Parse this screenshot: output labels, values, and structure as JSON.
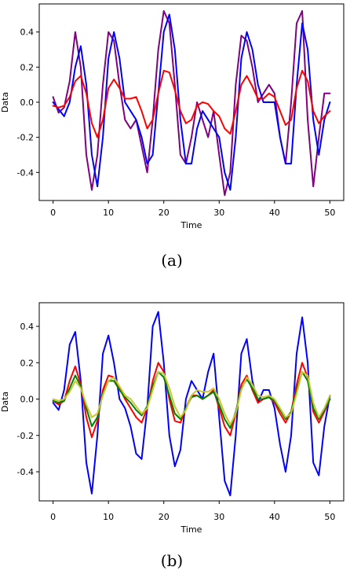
{
  "chart_data": [
    {
      "type": "line",
      "caption": "(a)",
      "xlabel": "Time",
      "ylabel": "Data",
      "xlim": [
        -2.5,
        52.5
      ],
      "ylim": [
        -0.56,
        0.56
      ],
      "xticks": [
        "0",
        "10",
        "20",
        "30",
        "40",
        "50"
      ],
      "yticks": [
        "-0.4",
        "-0.2",
        "0.0",
        "0.2",
        "0.4"
      ],
      "grid": false,
      "x": [
        0,
        1,
        2,
        3,
        4,
        5,
        6,
        7,
        8,
        9,
        10,
        11,
        12,
        13,
        14,
        15,
        16,
        17,
        18,
        19,
        20,
        21,
        22,
        23,
        24,
        25,
        26,
        27,
        28,
        29,
        30,
        31,
        32,
        33,
        34,
        35,
        36,
        37,
        38,
        39,
        40,
        41,
        42,
        43,
        44,
        45,
        46,
        47,
        48,
        49,
        50
      ],
      "series": [
        {
          "color": "#800080",
          "values": [
            0.03,
            -0.06,
            -0.03,
            0.12,
            0.4,
            0.2,
            -0.3,
            -0.5,
            -0.3,
            0.1,
            0.4,
            0.35,
            0.1,
            -0.1,
            -0.15,
            -0.1,
            -0.25,
            -0.4,
            -0.1,
            0.3,
            0.52,
            0.45,
            0.1,
            -0.3,
            -0.35,
            -0.2,
            0.0,
            -0.1,
            -0.2,
            -0.05,
            -0.3,
            -0.53,
            -0.4,
            0.1,
            0.38,
            0.35,
            0.2,
            0.0,
            0.05,
            0.1,
            0.05,
            -0.2,
            -0.35,
            0.0,
            0.45,
            0.52,
            -0.1,
            -0.48,
            -0.2,
            0.05,
            0.05
          ]
        },
        {
          "color": "#0000ff",
          "values": [
            0.0,
            -0.04,
            -0.08,
            0.0,
            0.2,
            0.32,
            0.1,
            -0.3,
            -0.48,
            -0.2,
            0.25,
            0.4,
            0.25,
            0.0,
            -0.05,
            -0.1,
            -0.2,
            -0.35,
            -0.3,
            0.05,
            0.4,
            0.5,
            0.3,
            -0.1,
            -0.35,
            -0.35,
            -0.15,
            -0.05,
            -0.1,
            -0.15,
            -0.2,
            -0.4,
            -0.5,
            -0.2,
            0.25,
            0.4,
            0.3,
            0.1,
            0.0,
            0.0,
            0.0,
            -0.2,
            -0.35,
            -0.35,
            0.1,
            0.45,
            0.3,
            -0.1,
            -0.3,
            -0.1,
            0.0
          ]
        },
        {
          "color": "#ff0000",
          "values": [
            -0.02,
            -0.03,
            -0.02,
            0.03,
            0.12,
            0.15,
            0.05,
            -0.12,
            -0.2,
            -0.1,
            0.08,
            0.13,
            0.08,
            0.02,
            0.02,
            0.03,
            -0.05,
            -0.15,
            -0.1,
            0.05,
            0.18,
            0.17,
            0.07,
            -0.05,
            -0.12,
            -0.1,
            -0.02,
            0.0,
            -0.01,
            -0.05,
            -0.08,
            -0.15,
            -0.18,
            -0.05,
            0.1,
            0.15,
            0.09,
            0.02,
            0.02,
            0.05,
            0.03,
            -0.05,
            -0.13,
            -0.1,
            0.08,
            0.18,
            0.12,
            -0.05,
            -0.12,
            -0.08,
            -0.05
          ]
        }
      ]
    },
    {
      "type": "line",
      "caption": "(b)",
      "xlabel": "Time",
      "ylabel": "Data",
      "xlim": [
        -2.5,
        52.5
      ],
      "ylim": [
        -0.56,
        0.53
      ],
      "xticks": [
        "0",
        "10",
        "20",
        "30",
        "40",
        "50"
      ],
      "yticks": [
        "-0.4",
        "-0.2",
        "0.0",
        "0.2",
        "0.4"
      ],
      "grid": false,
      "x": [
        0,
        1,
        2,
        3,
        4,
        5,
        6,
        7,
        8,
        9,
        10,
        11,
        12,
        13,
        14,
        15,
        16,
        17,
        18,
        19,
        20,
        21,
        22,
        23,
        24,
        25,
        26,
        27,
        28,
        29,
        30,
        31,
        32,
        33,
        34,
        35,
        36,
        37,
        38,
        39,
        40,
        41,
        42,
        43,
        44,
        45,
        46,
        47,
        48,
        49,
        50
      ],
      "series": [
        {
          "color": "#0000ff",
          "values": [
            -0.02,
            -0.06,
            0.05,
            0.3,
            0.37,
            0.1,
            -0.35,
            -0.52,
            -0.2,
            0.25,
            0.35,
            0.2,
            0.0,
            -0.05,
            -0.15,
            -0.3,
            -0.33,
            -0.05,
            0.4,
            0.48,
            0.2,
            -0.2,
            -0.37,
            -0.28,
            0.0,
            0.1,
            0.05,
            0.0,
            0.15,
            0.25,
            -0.1,
            -0.45,
            -0.53,
            -0.2,
            0.25,
            0.33,
            0.1,
            -0.02,
            0.05,
            0.05,
            -0.05,
            -0.25,
            -0.4,
            -0.2,
            0.25,
            0.45,
            0.2,
            -0.35,
            -0.42,
            -0.15,
            0.02
          ]
        },
        {
          "color": "#ff0000",
          "values": [
            -0.01,
            -0.03,
            -0.01,
            0.1,
            0.18,
            0.08,
            -0.1,
            -0.21,
            -0.12,
            0.05,
            0.13,
            0.12,
            0.06,
            0.0,
            -0.05,
            -0.1,
            -0.13,
            -0.05,
            0.1,
            0.2,
            0.15,
            0.0,
            -0.12,
            -0.13,
            -0.05,
            0.02,
            0.02,
            0.0,
            0.02,
            0.05,
            -0.05,
            -0.15,
            -0.2,
            -0.08,
            0.08,
            0.13,
            0.05,
            -0.02,
            0.0,
            0.01,
            -0.02,
            -0.08,
            -0.13,
            -0.07,
            0.08,
            0.2,
            0.12,
            -0.07,
            -0.13,
            -0.07,
            0.0
          ]
        },
        {
          "color": "#008000",
          "values": [
            -0.01,
            -0.02,
            -0.01,
            0.06,
            0.13,
            0.07,
            -0.05,
            -0.15,
            -0.1,
            0.03,
            0.1,
            0.1,
            0.05,
            0.01,
            -0.02,
            -0.06,
            -0.09,
            -0.04,
            0.07,
            0.15,
            0.12,
            0.02,
            -0.08,
            -0.11,
            -0.05,
            0.01,
            0.02,
            0.0,
            0.02,
            0.04,
            -0.03,
            -0.11,
            -0.16,
            -0.07,
            0.06,
            0.11,
            0.06,
            0.0,
            0.0,
            0.01,
            -0.01,
            -0.06,
            -0.11,
            -0.07,
            0.05,
            0.15,
            0.1,
            -0.05,
            -0.11,
            -0.06,
            0.0
          ]
        },
        {
          "color": "#c8c832",
          "values": [
            0.0,
            -0.01,
            0.0,
            0.04,
            0.1,
            0.06,
            -0.03,
            -0.1,
            -0.08,
            0.02,
            0.1,
            0.12,
            0.07,
            0.02,
            0.0,
            -0.04,
            -0.08,
            -0.05,
            0.05,
            0.15,
            0.14,
            0.06,
            -0.04,
            -0.1,
            -0.06,
            0.02,
            0.05,
            0.04,
            0.04,
            0.06,
            0.0,
            -0.08,
            -0.14,
            -0.08,
            0.05,
            0.12,
            0.08,
            0.02,
            0.01,
            0.02,
            0.0,
            -0.05,
            -0.1,
            -0.08,
            0.03,
            0.15,
            0.13,
            -0.02,
            -0.1,
            -0.05,
            0.02
          ]
        }
      ]
    }
  ]
}
